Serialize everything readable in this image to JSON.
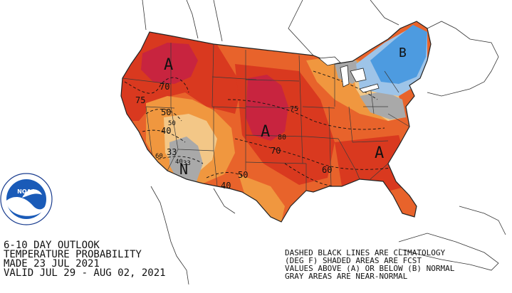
{
  "colors": {
    "background": "#ffffff",
    "above_deep": "#c8243f",
    "above_strong": "#d9391f",
    "above_mid": "#e8632b",
    "above_light": "#f0973f",
    "above_faint": "#f3c787",
    "near_normal": "#a9a9a9",
    "below_light": "#9ec4e8",
    "below_mid": "#4d9be0",
    "state_lines": "#3a3a3a",
    "coastline": "#222222"
  },
  "logo": {
    "name": "noaa-logo",
    "center_text": "NOAA",
    "ring_text_top": "NATIONAL OCEANIC AND ATMOSPHERIC ADMINISTRATION",
    "ring_text_bottom": "U.S. DEPARTMENT OF COMMERCE"
  },
  "header": {
    "line1": "6-10 DAY OUTLOOK",
    "line2": "TEMPERATURE PROBABILITY",
    "line3": "MADE  23 JUL 2021",
    "line4": "VALID  JUL 29 - AUG 02, 2021"
  },
  "legend_note": {
    "line1": "DASHED BLACK LINES ARE CLIMATOLOGY",
    "line2": "(DEG F) SHADED AREAS ARE FCST",
    "line3": "VALUES ABOVE (A) OR BELOW (B) NORMAL",
    "line4": "GRAY AREAS ARE NEAR-NORMAL"
  },
  "labels": {
    "a_northwest": "A",
    "a_plains": "A",
    "a_southeast": "A",
    "n_southwest": "N",
    "b_northeast": "B",
    "v70_nw": "70",
    "v75_w": "75",
    "v50_w": "50",
    "v40_w": "40",
    "v33": "33",
    "v60_sw": "60",
    "v50_sw": "50",
    "v40_sw": "40",
    "v33_sw": "33",
    "v75_plains": "75",
    "v80": "80",
    "v70_plains": "70",
    "v60_south": "60",
    "v50_south": "50",
    "v40_south": "40"
  }
}
